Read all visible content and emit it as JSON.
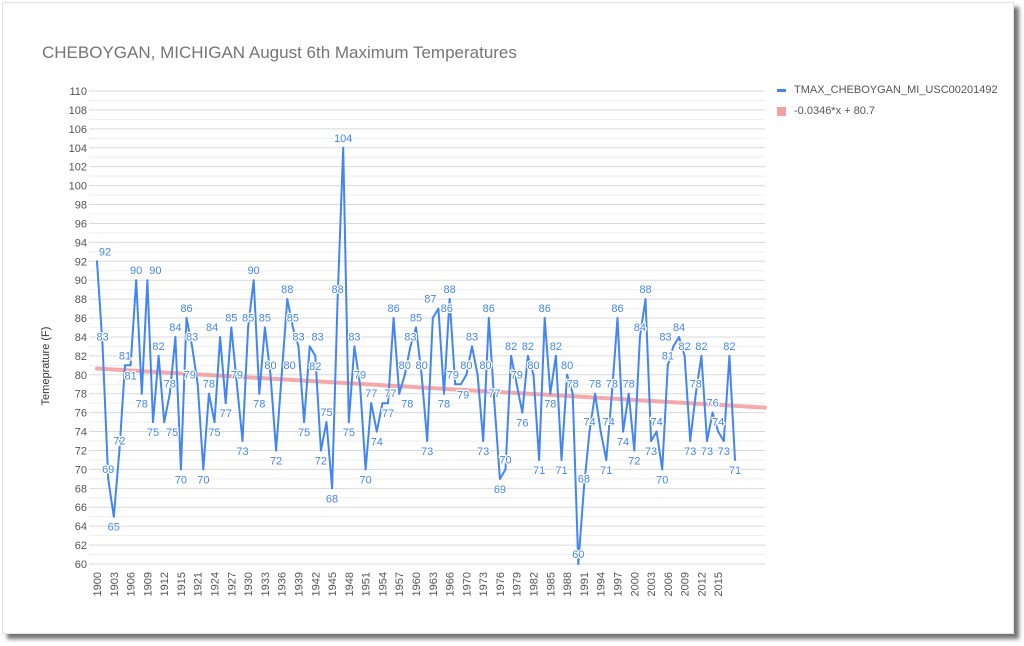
{
  "chart_data": {
    "type": "line",
    "title": "CHEBOYGAN, MICHIGAN August 6th Maximum Temperatures",
    "xlabel": "",
    "ylabel": "Temeprature (F)",
    "ylim": [
      60,
      110
    ],
    "yticks": [
      60,
      62,
      64,
      66,
      68,
      70,
      72,
      74,
      76,
      78,
      80,
      82,
      84,
      86,
      88,
      90,
      92,
      94,
      96,
      98,
      100,
      102,
      104,
      106,
      108,
      110
    ],
    "grid": true,
    "legend_position": "right",
    "x_tick_labels": [
      "1900",
      "1903",
      "1906",
      "1909",
      "1912",
      "1915",
      "1921",
      "1924",
      "1927",
      "1930",
      "1933",
      "1936",
      "1939",
      "1942",
      "1945",
      "1948",
      "1951",
      "1954",
      "1957",
      "1960",
      "1963",
      "1966",
      "1970",
      "1973",
      "1976",
      "1979",
      "1982",
      "1985",
      "1988",
      "1991",
      "1994",
      "1997",
      "2000",
      "2003",
      "2006",
      "2009",
      "2012",
      "2015"
    ],
    "x": [
      1900,
      1901,
      1902,
      1903,
      1904,
      1905,
      1906,
      1907,
      1908,
      1909,
      1910,
      1911,
      1912,
      1913,
      1914,
      1915,
      1918,
      1920,
      1921,
      1922,
      1923,
      1924,
      1925,
      1926,
      1927,
      1928,
      1929,
      1930,
      1931,
      1932,
      1933,
      1934,
      1935,
      1936,
      1937,
      1938,
      1939,
      1940,
      1941,
      1942,
      1943,
      1944,
      1945,
      1946,
      1947,
      1948,
      1949,
      1950,
      1951,
      1952,
      1953,
      1954,
      1955,
      1956,
      1957,
      1958,
      1959,
      1960,
      1961,
      1962,
      1963,
      1964,
      1965,
      1966,
      1968,
      1969,
      1970,
      1971,
      1972,
      1973,
      1974,
      1975,
      1976,
      1977,
      1978,
      1979,
      1980,
      1981,
      1982,
      1983,
      1984,
      1985,
      1986,
      1987,
      1988,
      1989,
      1990,
      1991,
      1992,
      1993,
      1994,
      1995,
      1996,
      1997,
      1998,
      1999,
      2000,
      2001,
      2002,
      2003,
      2004,
      2005,
      2006,
      2007,
      2008,
      2009,
      2010,
      2011,
      2012,
      2013,
      2014,
      2015,
      2016,
      2017,
      2018
    ],
    "series": [
      {
        "name": "TMAX_CHEBOYGAN_MI_USC00201492",
        "color": "#4285f4",
        "values": [
          92,
          83,
          69,
          65,
          72,
          81,
          81,
          90,
          78,
          90,
          75,
          82,
          75,
          78,
          84,
          70,
          86,
          83,
          79,
          70,
          78,
          75,
          84,
          77,
          85,
          79,
          73,
          85,
          90,
          78,
          85,
          80,
          72,
          80,
          88,
          85,
          83,
          75,
          83,
          82,
          72,
          75,
          68,
          88,
          104,
          75,
          83,
          79,
          70,
          77,
          74,
          77,
          77,
          86,
          78,
          80,
          83,
          85,
          80,
          73,
          86,
          87,
          78,
          88,
          79,
          79,
          80,
          83,
          80,
          73,
          86,
          77,
          69,
          70,
          82,
          79,
          76,
          82,
          80,
          71,
          86,
          78,
          82,
          71,
          80,
          78,
          60,
          68,
          74,
          78,
          74,
          71,
          78,
          86,
          74,
          78,
          72,
          84,
          88,
          73,
          74,
          70,
          81,
          83,
          84,
          82,
          73,
          78,
          82,
          73,
          76,
          74,
          73,
          82,
          71
        ]
      }
    ],
    "trendline": {
      "name": "-0.0346*x + 80.7",
      "color": "#f4a0a0",
      "slope": -0.0346,
      "intercept": 80.7
    }
  }
}
